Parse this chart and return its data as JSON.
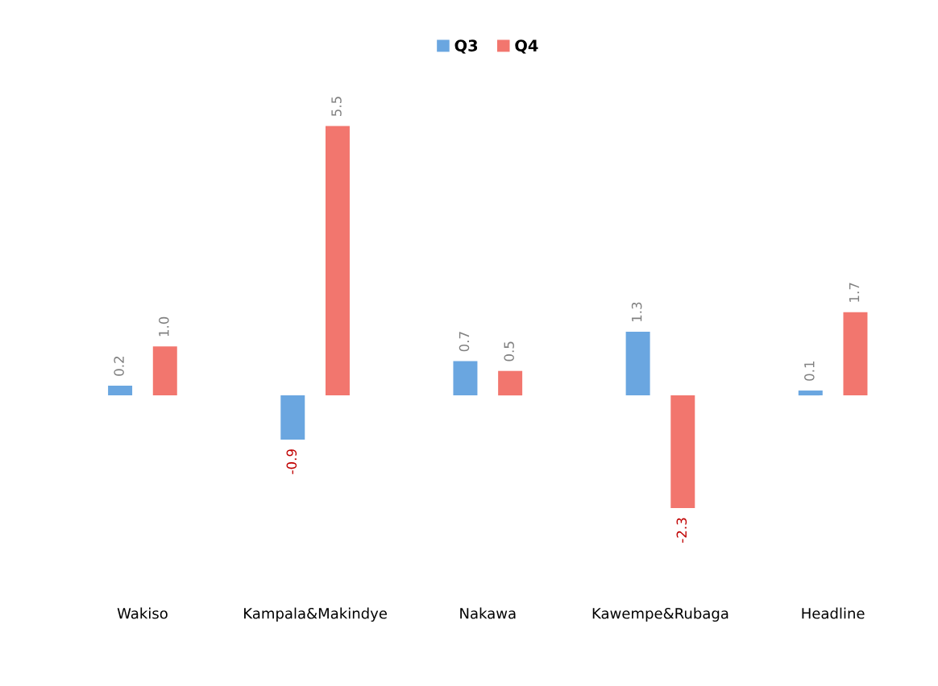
{
  "chart_data": {
    "type": "bar",
    "categories": [
      "Wakiso",
      "Kampala&Makindye",
      "Nakawa",
      "Kawempe&Rubaga",
      "Headline"
    ],
    "series": [
      {
        "name": "Q3",
        "color": "#6aa6e0",
        "values": [
          0.2,
          -0.9,
          0.7,
          1.3,
          0.1
        ],
        "value_labels": [
          "0.2",
          "-0.9",
          "0.7",
          "1.3",
          "0.1"
        ]
      },
      {
        "name": "Q4",
        "color": "#f2766e",
        "values": [
          1.0,
          5.5,
          0.5,
          -2.3,
          1.7
        ],
        "value_labels": [
          "1.0",
          "5.5",
          "0.5",
          "-2.3",
          "1.7"
        ]
      }
    ],
    "legend": "top",
    "grid": false,
    "tick_labels": "x"
  }
}
